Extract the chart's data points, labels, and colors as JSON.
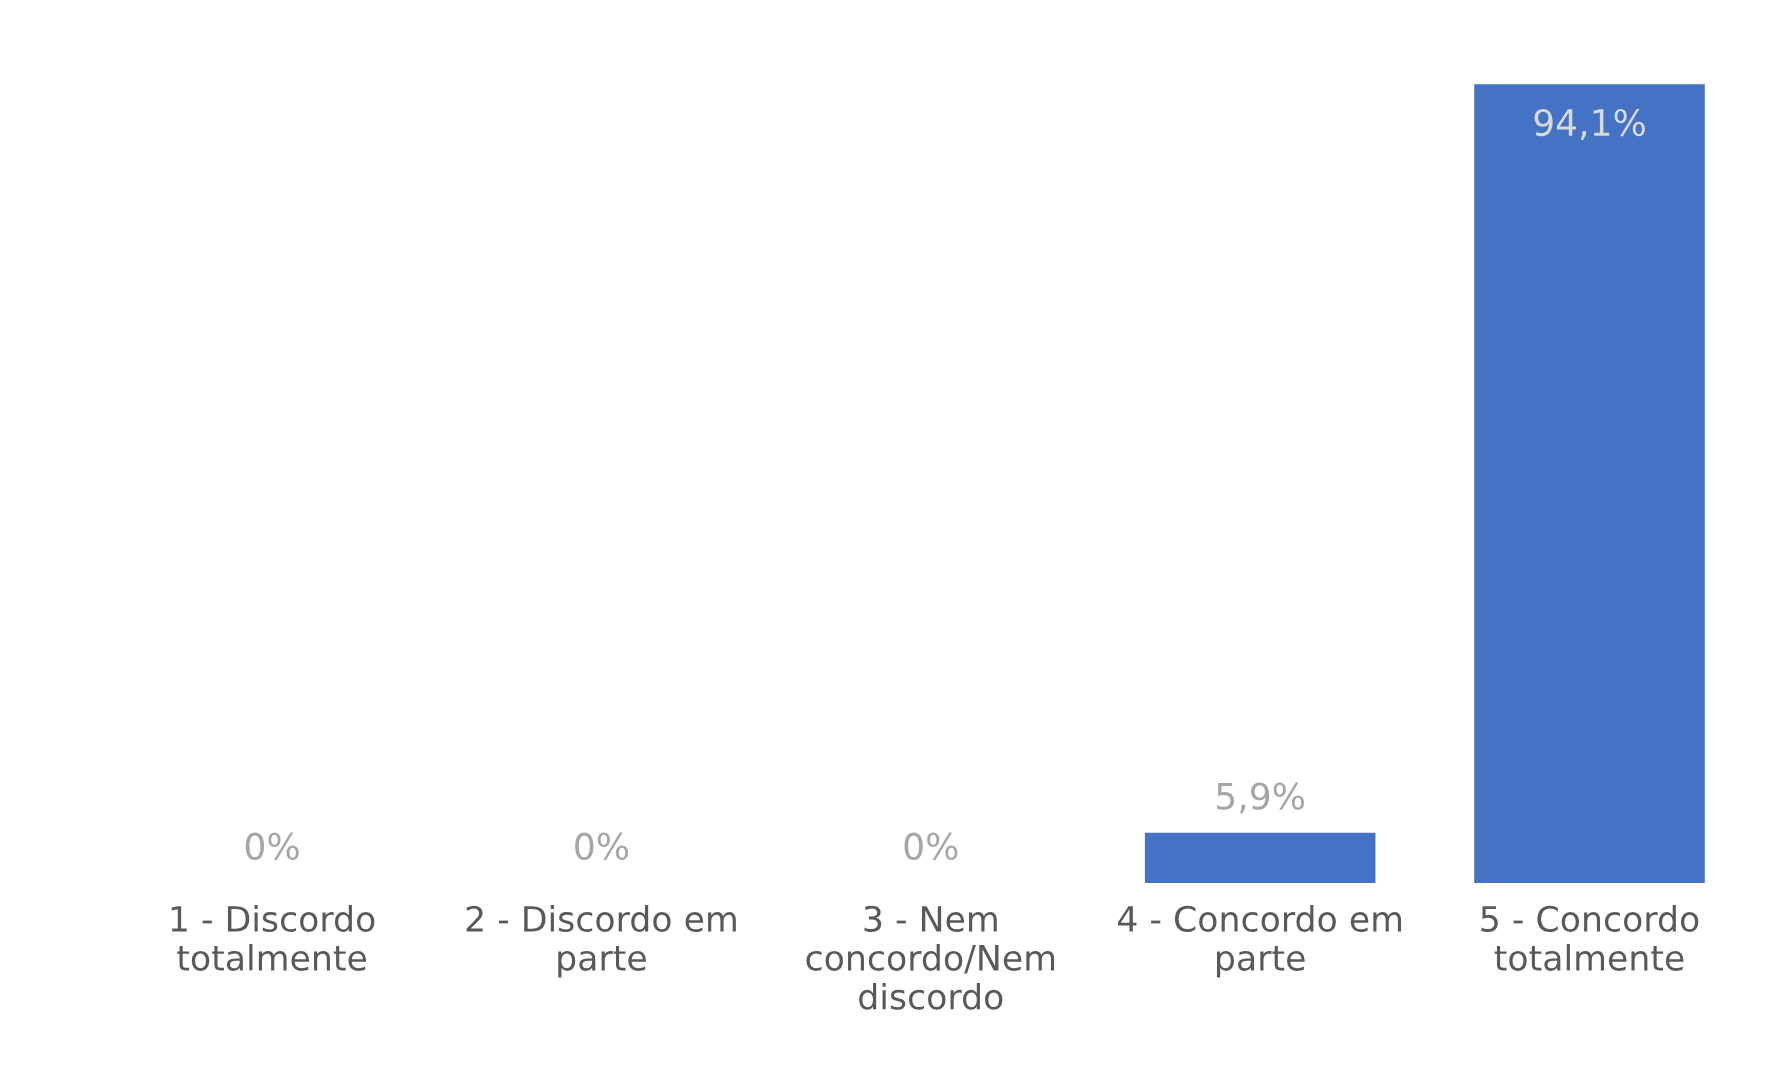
{
  "chart_data": {
    "type": "bar",
    "categories": [
      "1 - Discordo\ntotalmente",
      "2 - Discordo em\nparte",
      "3 - Nem\nconcordo/Nem\ndiscordo",
      "4 - Concordo em\nparte",
      "5 - Concordo\ntotalmente"
    ],
    "values": [
      0,
      0,
      0,
      5.9,
      94.1
    ],
    "value_labels": [
      "0%",
      "0%",
      "0%",
      "5,9%",
      "94,1%"
    ],
    "color": "#4472c4",
    "grid": false,
    "legend": false
  }
}
